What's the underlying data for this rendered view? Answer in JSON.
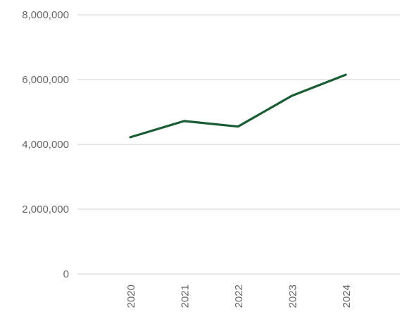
{
  "chart_data": {
    "type": "line",
    "title": "",
    "xlabel": "",
    "ylabel": "",
    "x": [
      "2020",
      "2021",
      "2022",
      "2023",
      "2024"
    ],
    "series": [
      {
        "values": [
          4220000,
          4720000,
          4550000,
          5500000,
          6150000
        ],
        "color": "#1a5c34"
      }
    ],
    "ylim": [
      0,
      8000000
    ],
    "yticks": [
      0,
      2000000,
      4000000,
      6000000,
      8000000
    ],
    "ytick_labels": [
      "0",
      "2,000,000",
      "4,000,000",
      "6,000,000",
      "8,000,000"
    ],
    "grid": true,
    "legend": "none"
  }
}
